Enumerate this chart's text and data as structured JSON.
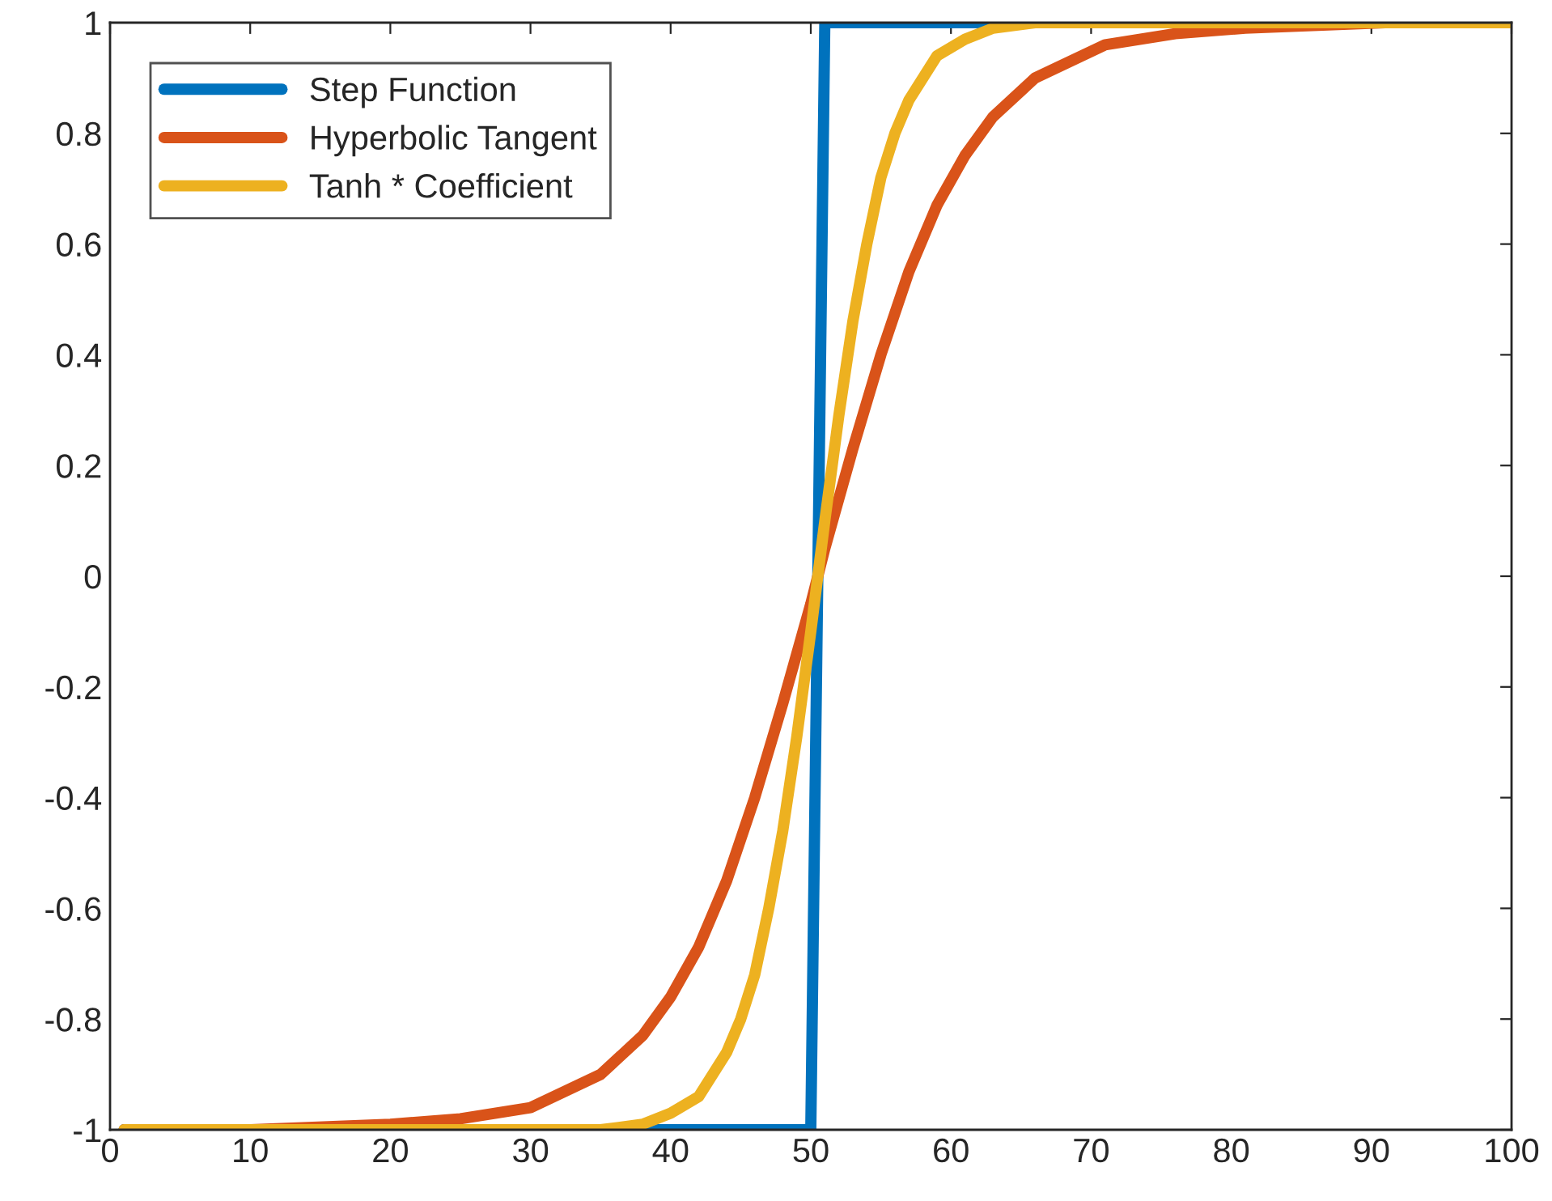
{
  "chart_data": {
    "type": "line",
    "series": [
      {
        "name": "Step Function",
        "color": "#0072bd",
        "x": [
          1,
          50,
          51,
          100
        ],
        "values": [
          -1,
          -1,
          1,
          1
        ]
      },
      {
        "name": "Hyperbolic Tangent",
        "color": "#d95319",
        "x": [
          1,
          10,
          20,
          25,
          30,
          35,
          38,
          40,
          42,
          44,
          46,
          48,
          50,
          51,
          53,
          55,
          57,
          59,
          61,
          63,
          66,
          71,
          76,
          81,
          91,
          100
        ],
        "values": [
          -1,
          -1,
          -0.99,
          -0.98,
          -0.96,
          -0.9,
          -0.83,
          -0.76,
          -0.67,
          -0.55,
          -0.4,
          -0.23,
          -0.05,
          0.05,
          0.23,
          0.4,
          0.55,
          0.67,
          0.76,
          0.83,
          0.9,
          0.96,
          0.98,
          0.99,
          1,
          1
        ]
      },
      {
        "name": "Tanh * Coefficient",
        "color": "#edb120",
        "x": [
          1,
          20,
          30,
          35,
          38,
          40,
          42,
          44,
          45,
          46,
          47,
          48,
          49,
          50,
          51,
          52,
          53,
          54,
          55,
          56,
          57,
          59,
          61,
          63,
          66,
          71,
          80,
          100
        ],
        "values": [
          -1,
          -1,
          -1,
          -1,
          -0.99,
          -0.97,
          -0.94,
          -0.86,
          -0.8,
          -0.72,
          -0.6,
          -0.46,
          -0.29,
          -0.1,
          0.1,
          0.29,
          0.46,
          0.6,
          0.72,
          0.8,
          0.86,
          0.94,
          0.97,
          0.99,
          1,
          1,
          1,
          1
        ]
      }
    ],
    "xlim": [
      0,
      100
    ],
    "xticks": [
      0,
      10,
      20,
      30,
      40,
      50,
      60,
      70,
      80,
      90,
      100
    ],
    "ylim": [
      -1,
      1
    ],
    "yticks": [
      -1,
      -0.8,
      -0.6,
      -0.4,
      -0.2,
      0,
      0.2,
      0.4,
      0.6,
      0.8,
      1
    ],
    "grid": false,
    "legend": "top left",
    "marker": "none",
    "line_style": "solid"
  }
}
